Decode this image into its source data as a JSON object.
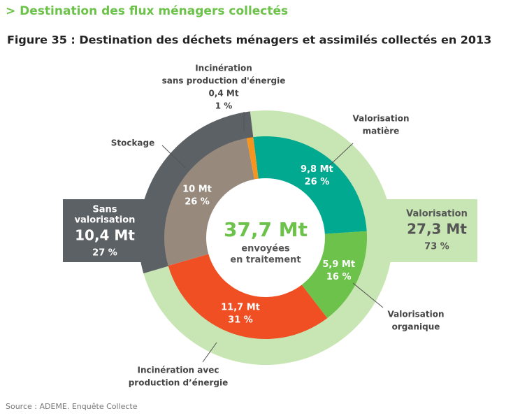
{
  "header": {
    "section": "> Destination des flux ménagers collectés",
    "source": "Source : ADEME. Enquête Collecte"
  },
  "chart_data": {
    "type": "donut",
    "title": "Figure 35 : Destination des déchets ménagers et assimilés collectés en 2013",
    "categories": [
      [
        "Valorisation",
        "matière"
      ],
      [
        "Valorisation",
        "organique"
      ],
      [
        "Incinération avec",
        "production d’énergie"
      ],
      [
        "Stockage"
      ],
      [
        "Incinération",
        "sans production d'énergie"
      ]
    ],
    "values": [
      9.8,
      5.9,
      11.7,
      10,
      0.4
    ],
    "value_labels": [
      "9,8 Mt",
      "5,9 Mt",
      "11,7 Mt",
      "10 Mt",
      "0,4 Mt"
    ],
    "percent_labels": [
      "26 %",
      "16 %",
      "31 %",
      "26 %",
      "1 %"
    ],
    "colors": [
      "#00a98f",
      "#6cc24a",
      "#f04e23",
      "#978a7c",
      "#f7941d"
    ],
    "groups": [
      {
        "name": [
          "Valorisation"
        ],
        "value": 27.3,
        "value_label": "27,3 Mt",
        "percent_label": "73 %",
        "color": "#c8e6b4"
      },
      {
        "name": [
          "Sans",
          "valorisation"
        ],
        "value": 10.4,
        "value_label": "10,4 Mt",
        "percent_label": "27 %",
        "color": "#5c6166"
      }
    ],
    "center": {
      "value": 37.7,
      "value_label": "37,7 Mt",
      "text": [
        "envoyées",
        "en traitement"
      ]
    }
  }
}
